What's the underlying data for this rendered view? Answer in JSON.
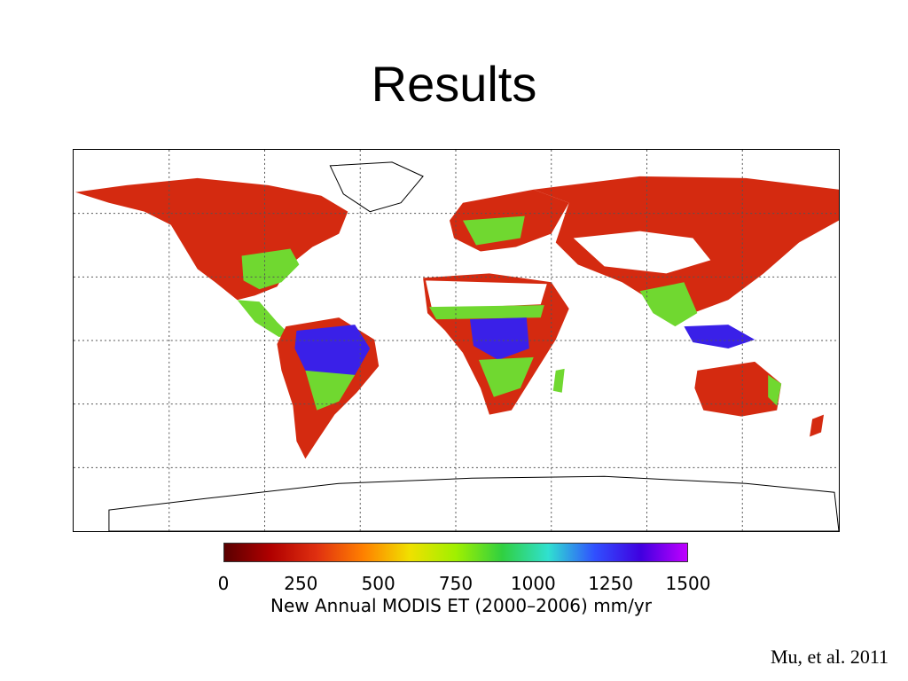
{
  "slide": {
    "title": "Results",
    "citation": "Mu, et al. 2011"
  },
  "legend": {
    "caption": "New Annual MODIS ET (2000–2006) mm/yr",
    "ticks": [
      "0",
      "250",
      "500",
      "750",
      "1000",
      "1250",
      "1500"
    ],
    "min": 0,
    "max": 1500,
    "unit": "mm/yr",
    "colors": [
      "#5a0000",
      "#b00000",
      "#e03010",
      "#ff8000",
      "#f0e000",
      "#a0f000",
      "#30d040",
      "#30e0d0",
      "#3050ff",
      "#4000e0",
      "#c000ff"
    ]
  },
  "map": {
    "grid": true,
    "region_colors": {
      "low_et": "#d42a10",
      "medium_et": "#70d830",
      "high_et": "#3a20e8",
      "desert": "#ffffff",
      "ice": "#ffffff",
      "ocean": "#ffffff"
    }
  }
}
